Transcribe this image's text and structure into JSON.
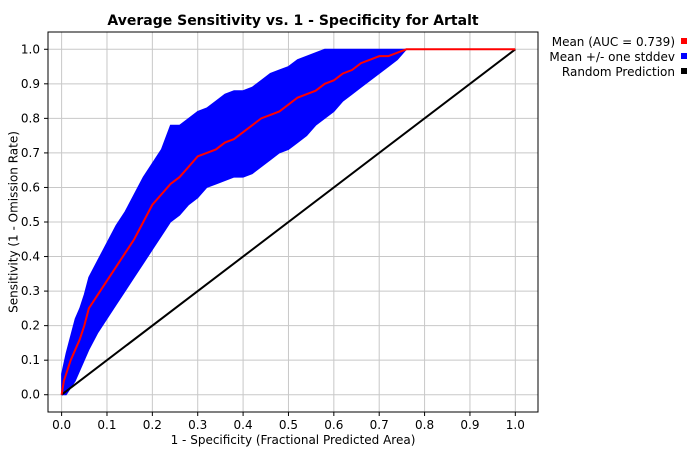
{
  "chart_data": {
    "type": "line",
    "title": "Average Sensitivity vs. 1 - Specificity for Artalt",
    "xlabel": "1 - Specificity (Fractional Predicted Area)",
    "ylabel": "Sensitivity (1 - Omission Rate)",
    "xlim": [
      -0.03,
      1.05
    ],
    "ylim": [
      -0.05,
      1.05
    ],
    "x_ticks": [
      "0.0",
      "0.1",
      "0.2",
      "0.3",
      "0.4",
      "0.5",
      "0.6",
      "0.7",
      "0.8",
      "0.9",
      "1.0"
    ],
    "y_ticks": [
      "0.0",
      "0.1",
      "0.2",
      "0.3",
      "0.4",
      "0.5",
      "0.6",
      "0.7",
      "0.8",
      "0.9",
      "1.0"
    ],
    "grid": true,
    "legend_position": "right-top, outside plot",
    "series": [
      {
        "name": "Mean (AUC = 0.739)",
        "color": "#ff0000",
        "style": "line",
        "x": [
          0.0,
          0.005,
          0.01,
          0.02,
          0.03,
          0.04,
          0.05,
          0.06,
          0.08,
          0.1,
          0.12,
          0.14,
          0.16,
          0.18,
          0.2,
          0.22,
          0.24,
          0.26,
          0.28,
          0.3,
          0.32,
          0.34,
          0.36,
          0.38,
          0.4,
          0.42,
          0.44,
          0.46,
          0.48,
          0.5,
          0.52,
          0.54,
          0.56,
          0.58,
          0.6,
          0.62,
          0.64,
          0.66,
          0.68,
          0.7,
          0.72,
          0.74,
          0.76,
          0.8,
          0.9,
          1.0
        ],
        "y": [
          0.0,
          0.04,
          0.06,
          0.1,
          0.13,
          0.16,
          0.2,
          0.25,
          0.29,
          0.33,
          0.37,
          0.41,
          0.45,
          0.5,
          0.55,
          0.58,
          0.61,
          0.63,
          0.66,
          0.69,
          0.7,
          0.71,
          0.73,
          0.74,
          0.76,
          0.78,
          0.8,
          0.81,
          0.82,
          0.84,
          0.86,
          0.87,
          0.88,
          0.9,
          0.91,
          0.93,
          0.94,
          0.96,
          0.97,
          0.98,
          0.98,
          0.99,
          1.0,
          1.0,
          1.0,
          1.0
        ]
      },
      {
        "name": "Mean +/- one stddev",
        "color": "#0000ff",
        "style": "band",
        "x": [
          0.0,
          0.01,
          0.02,
          0.03,
          0.04,
          0.05,
          0.06,
          0.08,
          0.1,
          0.12,
          0.14,
          0.16,
          0.18,
          0.2,
          0.22,
          0.24,
          0.26,
          0.28,
          0.3,
          0.32,
          0.34,
          0.36,
          0.38,
          0.4,
          0.42,
          0.44,
          0.46,
          0.48,
          0.5,
          0.52,
          0.54,
          0.56,
          0.58,
          0.6,
          0.62,
          0.64,
          0.66,
          0.68,
          0.7,
          0.72,
          0.74,
          0.76
        ],
        "lower": [
          0.0,
          0.0,
          0.02,
          0.04,
          0.07,
          0.1,
          0.13,
          0.18,
          0.22,
          0.26,
          0.3,
          0.34,
          0.38,
          0.42,
          0.46,
          0.5,
          0.52,
          0.55,
          0.57,
          0.6,
          0.61,
          0.62,
          0.63,
          0.63,
          0.64,
          0.66,
          0.68,
          0.7,
          0.71,
          0.73,
          0.75,
          0.78,
          0.8,
          0.82,
          0.85,
          0.87,
          0.89,
          0.91,
          0.93,
          0.95,
          0.97,
          1.0
        ],
        "upper": [
          0.06,
          0.12,
          0.17,
          0.22,
          0.25,
          0.29,
          0.34,
          0.39,
          0.44,
          0.49,
          0.53,
          0.58,
          0.63,
          0.67,
          0.71,
          0.78,
          0.78,
          0.8,
          0.82,
          0.83,
          0.85,
          0.87,
          0.88,
          0.88,
          0.89,
          0.91,
          0.93,
          0.94,
          0.95,
          0.97,
          0.98,
          0.99,
          1.0,
          1.0,
          1.0,
          1.0,
          1.0,
          1.0,
          1.0,
          1.0,
          1.0,
          1.0
        ]
      },
      {
        "name": "Random Prediction",
        "color": "#000000",
        "style": "line",
        "x": [
          0.0,
          1.0
        ],
        "y": [
          0.0,
          1.0
        ]
      }
    ]
  }
}
